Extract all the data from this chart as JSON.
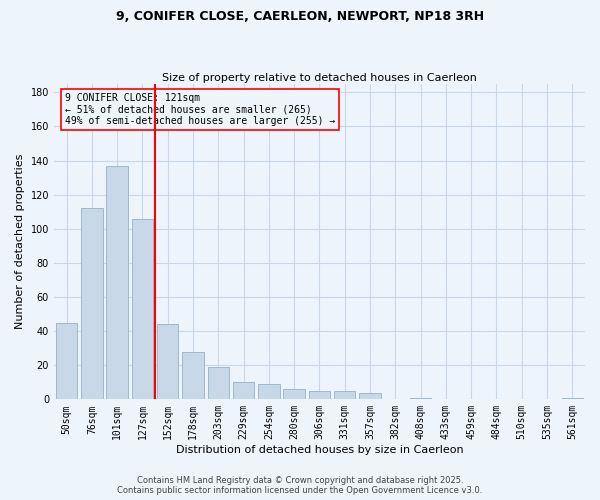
{
  "title": "9, CONIFER CLOSE, CAERLEON, NEWPORT, NP18 3RH",
  "subtitle": "Size of property relative to detached houses in Caerleon",
  "xlabel": "Distribution of detached houses by size in Caerleon",
  "ylabel": "Number of detached properties",
  "categories": [
    "50sqm",
    "76sqm",
    "101sqm",
    "127sqm",
    "152sqm",
    "178sqm",
    "203sqm",
    "229sqm",
    "254sqm",
    "280sqm",
    "306sqm",
    "331sqm",
    "357sqm",
    "382sqm",
    "408sqm",
    "433sqm",
    "459sqm",
    "484sqm",
    "510sqm",
    "535sqm",
    "561sqm"
  ],
  "values": [
    45,
    112,
    137,
    106,
    44,
    28,
    19,
    10,
    9,
    6,
    5,
    5,
    4,
    0,
    1,
    0,
    0,
    0,
    0,
    0,
    1
  ],
  "bar_color": "#c8d8e8",
  "bar_edgecolor": "#a0b8cc",
  "grid_color": "#c8d8ec",
  "background_color": "#eef4fb",
  "vline_x_index": 3,
  "vline_color": "red",
  "annotation_text": "9 CONIFER CLOSE: 121sqm\n← 51% of detached houses are smaller (265)\n49% of semi-detached houses are larger (255) →",
  "annotation_box_edgecolor": "red",
  "ylim": [
    0,
    185
  ],
  "yticks": [
    0,
    20,
    40,
    60,
    80,
    100,
    120,
    140,
    160,
    180
  ],
  "footer_line1": "Contains HM Land Registry data © Crown copyright and database right 2025.",
  "footer_line2": "Contains public sector information licensed under the Open Government Licence v3.0.",
  "title_fontsize": 9,
  "subtitle_fontsize": 8,
  "axis_label_fontsize": 8,
  "tick_fontsize": 7,
  "annotation_fontsize": 7,
  "footer_fontsize": 6
}
